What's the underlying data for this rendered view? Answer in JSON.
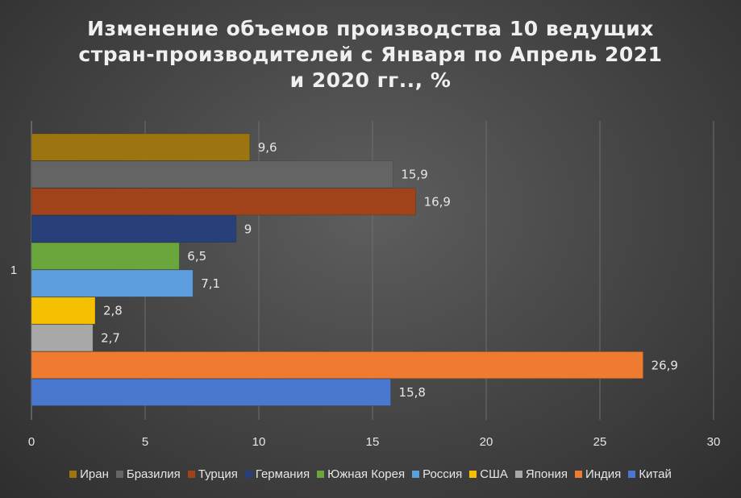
{
  "title_lines": [
    "Изменение объемов производства 10 ведущих",
    "стран-производителей с Января по Апрель 2021",
    "и 2020 гг.., %"
  ],
  "chart_data": {
    "type": "bar",
    "orientation": "horizontal",
    "categories": [
      "1"
    ],
    "series": [
      {
        "name": "Иран",
        "value": 9.6,
        "label": "9,6",
        "color": "#9c7410"
      },
      {
        "name": "Бразилия",
        "value": 15.9,
        "label": "15,9",
        "color": "#646464"
      },
      {
        "name": "Турция",
        "value": 16.9,
        "label": "16,9",
        "color": "#a0431a"
      },
      {
        "name": "Германия",
        "value": 9,
        "label": "9",
        "color": "#27407a"
      },
      {
        "name": "Южная Корея",
        "value": 6.5,
        "label": "6,5",
        "color": "#6aa63c"
      },
      {
        "name": "Россия",
        "value": 7.1,
        "label": "7,1",
        "color": "#5c9ede"
      },
      {
        "name": "США",
        "value": 2.8,
        "label": "2,8",
        "color": "#f5c000"
      },
      {
        "name": "Япония",
        "value": 2.7,
        "label": "2,7",
        "color": "#a8a8a8"
      },
      {
        "name": "Индия",
        "value": 26.9,
        "label": "26,9",
        "color": "#ee7b30"
      },
      {
        "name": "Китай",
        "value": 15.8,
        "label": "15,8",
        "color": "#4a78cf"
      }
    ],
    "xlim": [
      0,
      30
    ],
    "xticks": [
      0,
      5,
      10,
      15,
      20,
      25,
      30
    ],
    "grid": true,
    "legend_position": "bottom"
  }
}
